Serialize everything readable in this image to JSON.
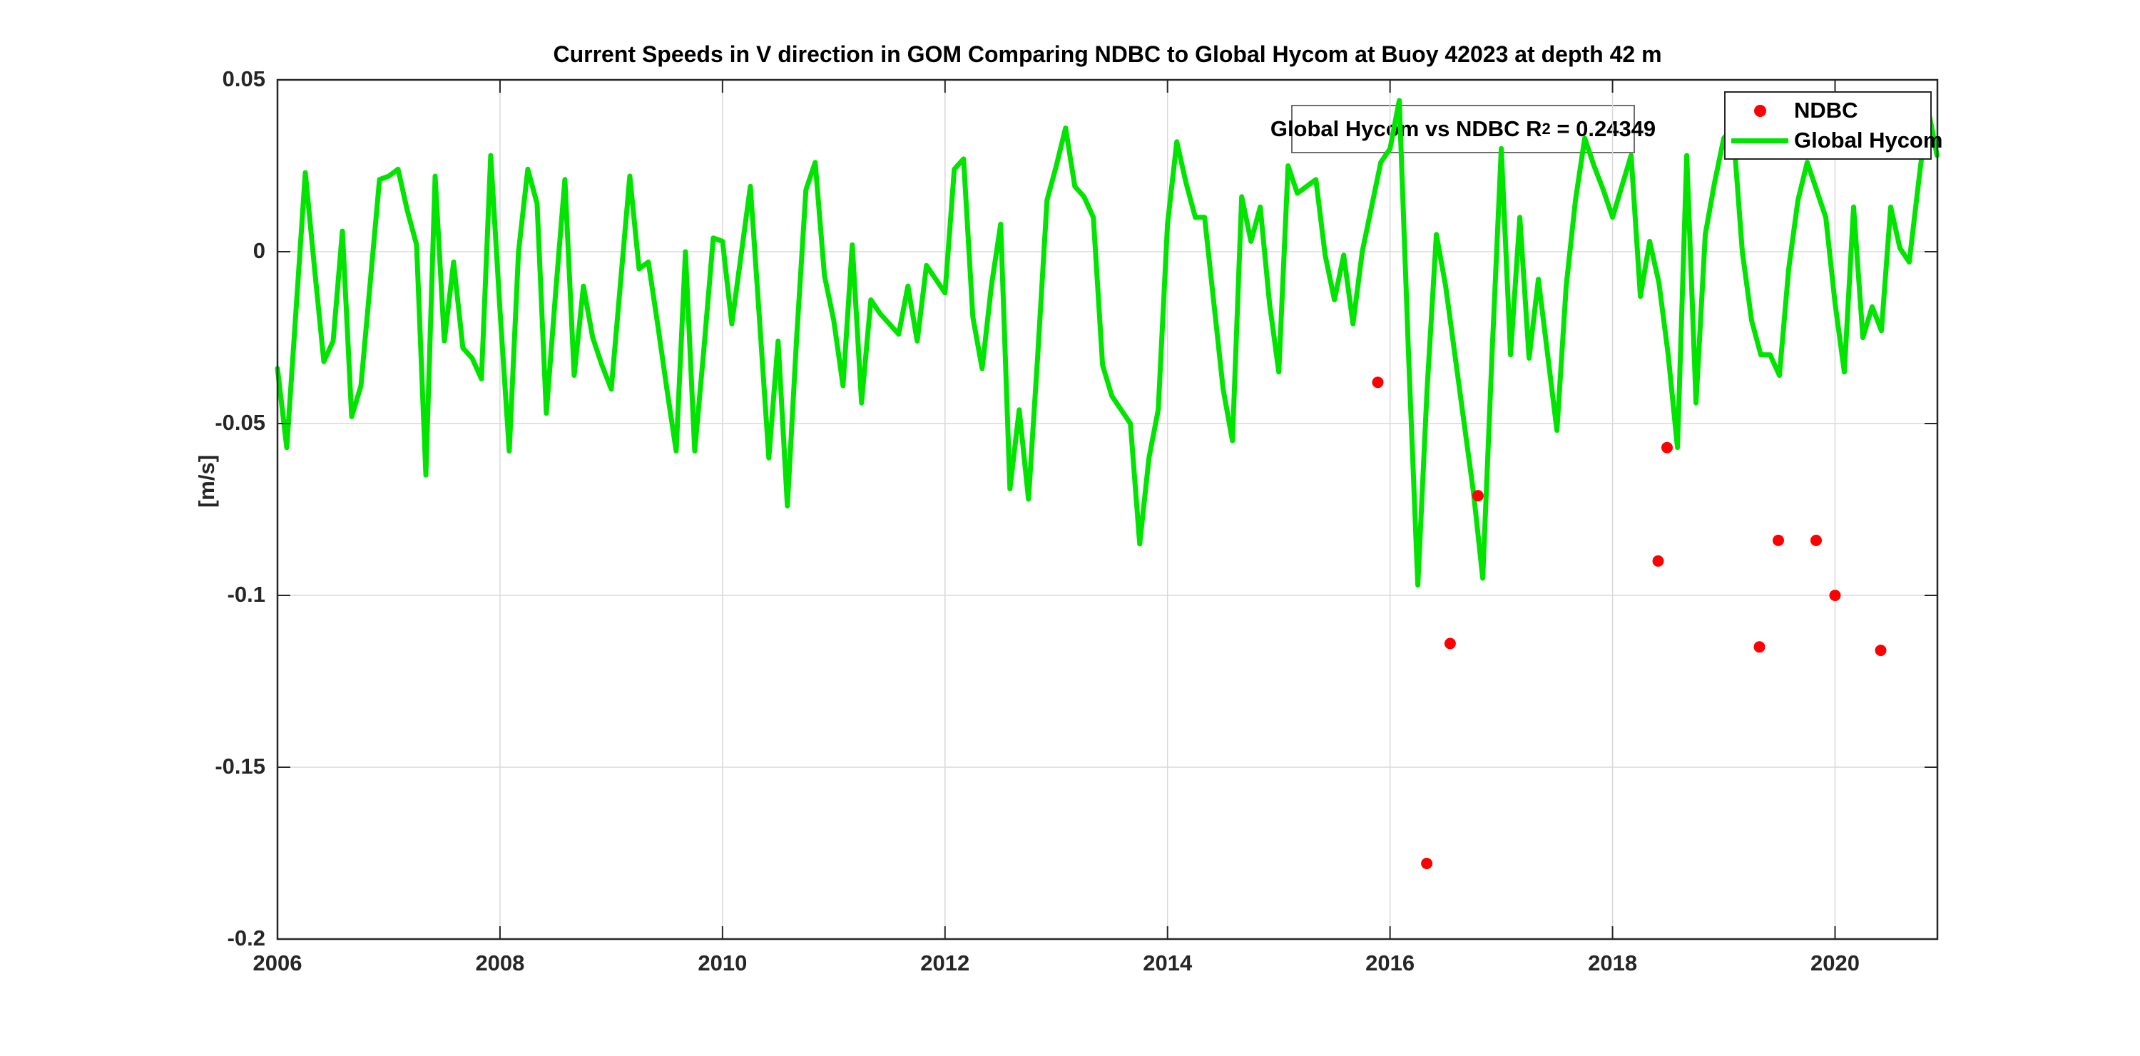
{
  "figure": {
    "title": "Current Speeds in V direction in GOM Comparing NDBC to Global Hycom at Buoy  42023  at depth  42 m",
    "ylabel": "[m/s]",
    "background_color": "#ffffff",
    "axes_color": "#262626",
    "grid_color": "#d9d9d9"
  },
  "annotation": {
    "prefix": "Global Hycom vs NDBC R",
    "sup": "2",
    "suffix": " = 0.24349"
  },
  "legend": {
    "items": [
      {
        "label": "NDBC",
        "marker": "dot",
        "color": "#ff0000"
      },
      {
        "label": "Global Hycom",
        "marker": "line",
        "color": "#00e400"
      }
    ]
  },
  "chart_data": {
    "type": "line",
    "title": "Current Speeds in V direction in GOM Comparing NDBC to Global Hycom at Buoy  42023  at depth  42 m",
    "xlabel": "",
    "ylabel": "[m/s]",
    "xlim": [
      2006,
      2020.92
    ],
    "ylim": [
      -0.2,
      0.05
    ],
    "xticks": [
      2006,
      2008,
      2010,
      2012,
      2014,
      2016,
      2018,
      2020
    ],
    "xtick_labels": [
      "2006",
      "2008",
      "2010",
      "2012",
      "2014",
      "2016",
      "2018",
      "2020"
    ],
    "yticks": [
      0.05,
      0,
      -0.05,
      -0.1,
      -0.15,
      -0.2
    ],
    "ytick_labels": [
      "0.05",
      "0",
      "-0.05",
      "-0.1",
      "-0.15",
      "-0.2"
    ],
    "grid": true,
    "legend_position": "top-right",
    "r_squared": 0.24349,
    "series": [
      {
        "name": "Global Hycom",
        "type": "line",
        "color": "#00e400",
        "start_year": 2006,
        "interval_months": 1,
        "values": [
          -0.034,
          -0.057,
          -0.017,
          0.023,
          -0.005,
          -0.032,
          -0.026,
          0.006,
          -0.048,
          -0.039,
          -0.009,
          0.021,
          0.022,
          0.024,
          0.012,
          0.002,
          -0.065,
          0.022,
          -0.026,
          -0.003,
          -0.028,
          -0.031,
          -0.037,
          0.028,
          -0.017,
          -0.058,
          0.0,
          0.024,
          0.014,
          -0.047,
          -0.012,
          0.021,
          -0.036,
          -0.01,
          -0.025,
          -0.033,
          -0.04,
          -0.009,
          0.022,
          -0.005,
          -0.003,
          -0.021,
          -0.04,
          -0.058,
          0.0,
          -0.058,
          -0.028,
          0.004,
          0.003,
          -0.021,
          -0.001,
          0.019,
          -0.02,
          -0.06,
          -0.026,
          -0.074,
          -0.025,
          0.018,
          0.026,
          -0.007,
          -0.02,
          -0.039,
          0.002,
          -0.044,
          -0.014,
          -0.018,
          -0.021,
          -0.024,
          -0.01,
          -0.026,
          -0.004,
          -0.008,
          -0.012,
          0.024,
          0.027,
          -0.019,
          -0.034,
          -0.01,
          0.008,
          -0.069,
          -0.046,
          -0.072,
          -0.03,
          0.015,
          0.025,
          0.036,
          0.019,
          0.016,
          0.01,
          -0.033,
          -0.042,
          -0.046,
          -0.05,
          -0.085,
          -0.06,
          -0.046,
          0.008,
          0.032,
          0.02,
          0.01,
          0.01,
          -0.015,
          -0.04,
          -0.055,
          0.016,
          0.003,
          0.013,
          -0.015,
          -0.035,
          0.025,
          0.017,
          0.019,
          0.021,
          -0.001,
          -0.014,
          -0.001,
          -0.021,
          0.0,
          0.013,
          0.026,
          0.03,
          0.044,
          -0.03,
          -0.097,
          -0.04,
          0.005,
          -0.01,
          -0.03,
          -0.05,
          -0.07,
          -0.095,
          -0.03,
          0.03,
          -0.03,
          0.01,
          -0.031,
          -0.008,
          -0.03,
          -0.052,
          -0.01,
          0.015,
          0.033,
          0.025,
          0.018,
          0.01,
          0.019,
          0.028,
          -0.013,
          0.003,
          -0.009,
          -0.03,
          -0.057,
          0.028,
          -0.044,
          0.005,
          0.02,
          0.033,
          0.036,
          0.0,
          -0.02,
          -0.03,
          -0.03,
          -0.036,
          -0.005,
          0.015,
          0.026,
          0.018,
          0.01,
          -0.015,
          -0.035,
          0.013,
          -0.025,
          -0.016,
          -0.023,
          0.013,
          0.001,
          -0.003,
          0.02,
          0.042,
          0.028
        ]
      },
      {
        "name": "NDBC",
        "type": "scatter",
        "color": "#ff0000",
        "points": [
          {
            "year": 2015.89,
            "value": -0.038
          },
          {
            "year": 2016.33,
            "value": -0.178
          },
          {
            "year": 2016.54,
            "value": -0.114
          },
          {
            "year": 2016.79,
            "value": -0.071
          },
          {
            "year": 2018.41,
            "value": -0.09
          },
          {
            "year": 2018.49,
            "value": -0.057
          },
          {
            "year": 2019.32,
            "value": -0.115
          },
          {
            "year": 2019.49,
            "value": -0.084
          },
          {
            "year": 2019.83,
            "value": -0.084
          },
          {
            "year": 2020.0,
            "value": -0.1
          },
          {
            "year": 2020.41,
            "value": -0.116
          }
        ]
      }
    ]
  }
}
